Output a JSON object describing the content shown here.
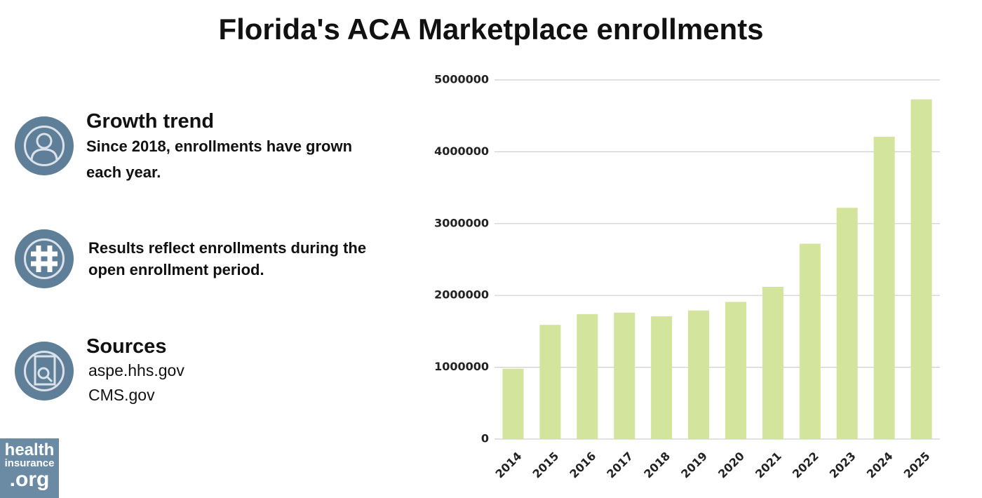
{
  "chart_data": {
    "type": "bar",
    "title": "Florida's ACA Marketplace enrollments",
    "categories": [
      "2014",
      "2015",
      "2016",
      "2017",
      "2018",
      "2019",
      "2020",
      "2021",
      "2022",
      "2023",
      "2024",
      "2025"
    ],
    "values": [
      980000,
      1590000,
      1740000,
      1760000,
      1710000,
      1790000,
      1910000,
      2120000,
      2720000,
      3220000,
      4210000,
      4730000
    ],
    "color": "#d3e49d",
    "ylim": [
      0,
      5000000
    ],
    "yticks": [
      0,
      1000000,
      2000000,
      3000000,
      4000000,
      5000000
    ],
    "grid": true
  },
  "sidebar": {
    "growth": {
      "heading": "Growth trend",
      "text": "Since 2018, enrollments have grown each year."
    },
    "note": {
      "text": "Results reflect enrollments during the open enrollment period."
    },
    "sources": {
      "heading": "Sources",
      "lines": [
        "aspe.hhs.gov",
        "CMS.gov"
      ]
    }
  },
  "logo": {
    "lines": [
      "health",
      "insurance",
      ".org"
    ]
  }
}
